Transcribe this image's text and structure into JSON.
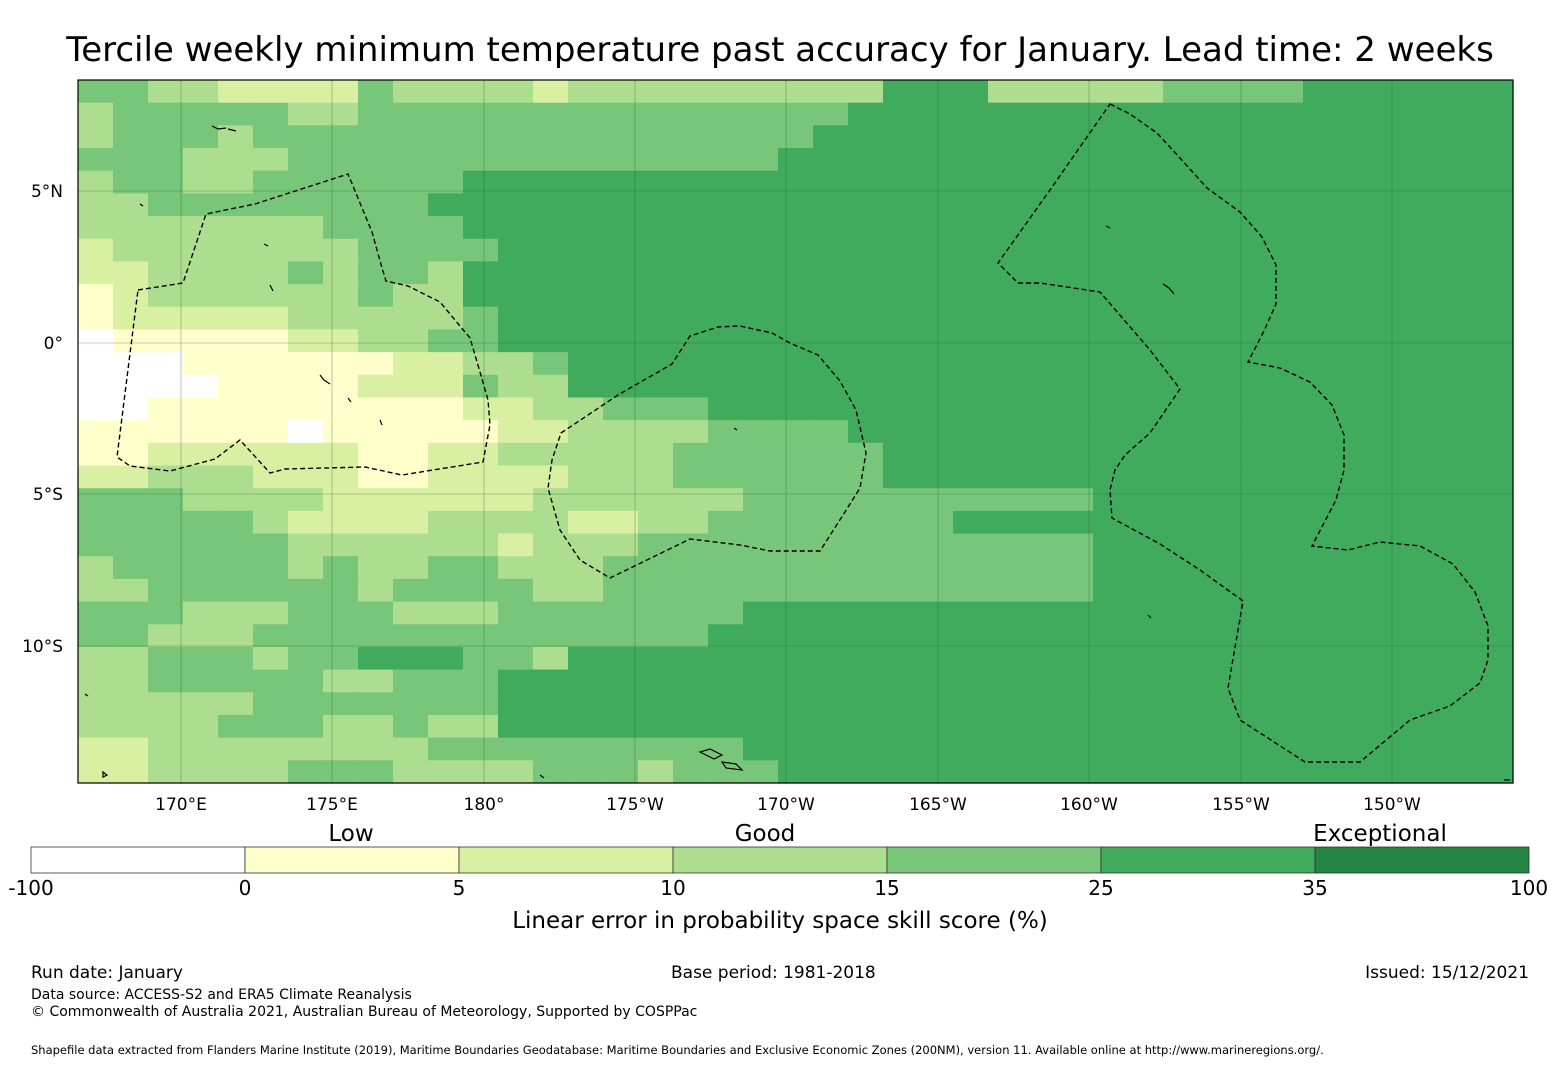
{
  "title": "Tercile weekly minimum temperature past accuracy for January. Lead time: 2 weeks",
  "map": {
    "lat_labels": [
      "5°N",
      "0°",
      "5°S",
      "10°S"
    ],
    "lon_labels": [
      "170°E",
      "175°E",
      "180°",
      "175°W",
      "170°W",
      "165°W",
      "160°W",
      "155°W",
      "150°W"
    ],
    "cells_grid": [
      "44332222433332333333333555333334444555555",
      "34444433444444444444445555555555555555555",
      "34443444444444444444455555555555555555555",
      "44433344444444444444555555555555555555555",
      "34433444444555555555555555555555555555555",
      "33444444445555555555555555555555555555555",
      "33333334444555555555555555555555555555555",
      "23333333444455555555555555555555555555555",
      "22333343443555555555555555555555555555555",
      "12333333433555555555555555555555555555555",
      "12222233333455555555555555555555555555555",
      "01111122334455555555555555555555555555555",
      "00011111122334555555555555555555555555555",
      "00001111222433555555555555555555555555555",
      "00111111111223344455555555555555555555555",
      "11111101111122333344445555555555555555555",
      "11222222112233333444444555555555555555555",
      "22333222112222333444444555555555555555555",
      "44433332222223333334444444444555555555555",
      "44444322223333223344444445555555555555555",
      "44444433333323334444444444444555555555555",
      "34444434334433344444444444444555555555555",
      "33444444344443344444444444444555555555555",
      "44433344433344444445555555555555555555555",
      "44333444444444444455555555555555555555555",
      "33444344555443555555555555555555555555555",
      "33444443344455555555555555555555555555555",
      "33333444444455555555555555555555555555555",
      "33334443343355555555555555555555555555555",
      "22333333334444444445555555555555555555555",
      "22333344433334443444555555555555555555555"
    ]
  },
  "legend": {
    "header_labels": [
      "Low",
      "Good",
      "Exceptional"
    ],
    "tick_labels": [
      "-100",
      "0",
      "5",
      "10",
      "15",
      "25",
      "35",
      "100"
    ],
    "colors": [
      "#ffffff",
      "#ffffcc",
      "#d9f0a3",
      "#addd8e",
      "#78c679",
      "#41ab5d",
      "#238443"
    ],
    "axis_label": "Linear error in probability space skill score (%)"
  },
  "footer": {
    "run_date": "Run date: January",
    "base_period": "Base period: 1981-2018",
    "issued": "Issued: 15/12/2021",
    "data_source": "Data source: ACCESS-S2 and ERA5 Climate Reanalysis",
    "copyright": "© Commonwealth of Australia 2021, Australian Bureau of Meteorology, Supported by COSPPac",
    "shapefile": "Shapefile data extracted from Flanders Marine Institute (2019), Maritime Boundaries Geodatabase: Maritime Boundaries and Exclusive Economic Zones (200NM), version 11. Available online at http://www.marineregions.org/."
  }
}
